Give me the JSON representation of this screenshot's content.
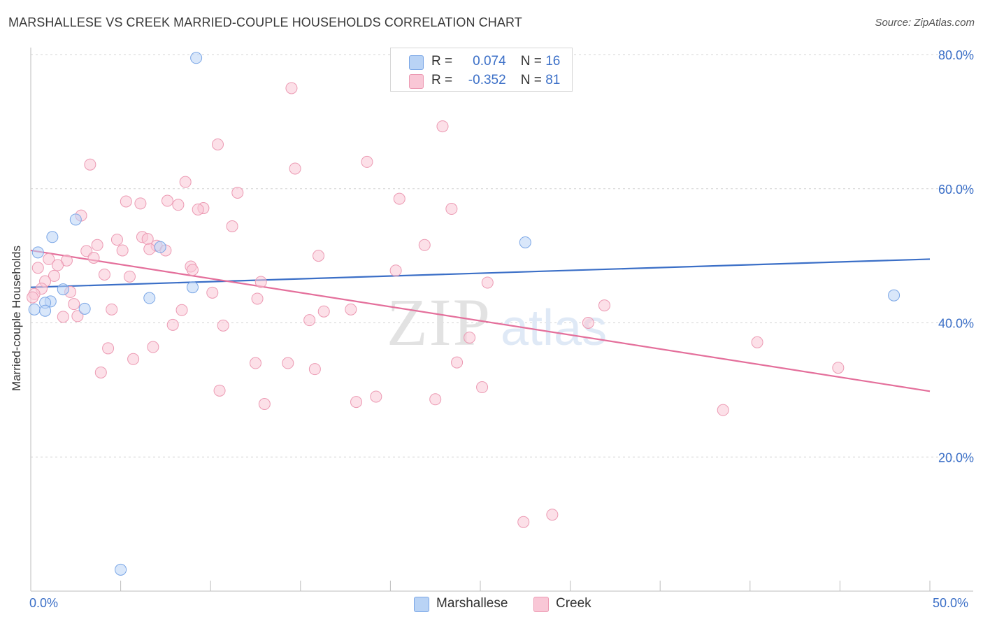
{
  "title": "MARSHALLESE VS CREEK MARRIED-COUPLE HOUSEHOLDS CORRELATION CHART",
  "source": "Source: ZipAtlas.com",
  "watermark": {
    "zip": "ZIP",
    "atlas": "atlas"
  },
  "stats": [
    {
      "r_label": "R =",
      "r_value": "0.074",
      "n_label": "N =",
      "n_value": "16",
      "fill": "#b9d3f5",
      "stroke": "#7aa6e6"
    },
    {
      "r_label": "R =",
      "r_value": "-0.352",
      "n_label": "N =",
      "n_value": "81",
      "fill": "#f9c7d6",
      "stroke": "#ec9ab3"
    }
  ],
  "legend": [
    {
      "label": "Marshallese",
      "fill": "#b9d3f5",
      "stroke": "#7aa6e6"
    },
    {
      "label": "Creek",
      "fill": "#f9c7d6",
      "stroke": "#ec9ab3"
    }
  ],
  "x_axis": {
    "min_label": "0.0%",
    "max_label": "50.0%"
  },
  "chart_data": {
    "type": "scatter",
    "title": "MARSHALLESE VS CREEK MARRIED-COUPLE HOUSEHOLDS CORRELATION CHART",
    "xlabel": "",
    "ylabel": "Married-couple Households",
    "xlim": [
      0,
      50
    ],
    "ylim": [
      0,
      80
    ],
    "yticks": [
      20,
      40,
      60,
      80
    ],
    "ytick_labels": [
      "20.0%",
      "40.0%",
      "60.0%",
      "80.0%"
    ],
    "series": [
      {
        "name": "Marshallese",
        "color": "#3b6fc7",
        "fill": "#b9d3f5",
        "stroke": "#7aa6e6",
        "trend": {
          "x": [
            0,
            50
          ],
          "y": [
            45.3,
            49.5
          ]
        },
        "points": [
          {
            "x": 9.2,
            "y": 79.5
          },
          {
            "x": 2.5,
            "y": 55.4
          },
          {
            "x": 1.2,
            "y": 52.8
          },
          {
            "x": 0.4,
            "y": 50.5
          },
          {
            "x": 7.2,
            "y": 51.3
          },
          {
            "x": 27.5,
            "y": 52.0
          },
          {
            "x": 1.8,
            "y": 45.0
          },
          {
            "x": 9.0,
            "y": 45.3
          },
          {
            "x": 1.1,
            "y": 43.2
          },
          {
            "x": 0.8,
            "y": 43.0
          },
          {
            "x": 6.6,
            "y": 43.7
          },
          {
            "x": 3.0,
            "y": 42.1
          },
          {
            "x": 0.2,
            "y": 42.0
          },
          {
            "x": 0.8,
            "y": 41.8
          },
          {
            "x": 48.0,
            "y": 44.1
          },
          {
            "x": 5.0,
            "y": 3.2
          }
        ]
      },
      {
        "name": "Creek",
        "color": "#e46f9b",
        "fill": "#f9c7d6",
        "stroke": "#ec9ab3",
        "trend": {
          "x": [
            0,
            50
          ],
          "y": [
            50.8,
            29.8
          ]
        },
        "points": [
          {
            "x": 14.5,
            "y": 75.0
          },
          {
            "x": 22.9,
            "y": 69.3
          },
          {
            "x": 10.4,
            "y": 66.6
          },
          {
            "x": 18.7,
            "y": 64.0
          },
          {
            "x": 3.3,
            "y": 63.6
          },
          {
            "x": 14.7,
            "y": 63.0
          },
          {
            "x": 8.6,
            "y": 61.0
          },
          {
            "x": 11.5,
            "y": 59.4
          },
          {
            "x": 20.5,
            "y": 58.5
          },
          {
            "x": 5.3,
            "y": 58.1
          },
          {
            "x": 6.1,
            "y": 57.8
          },
          {
            "x": 7.6,
            "y": 58.2
          },
          {
            "x": 8.2,
            "y": 57.6
          },
          {
            "x": 9.6,
            "y": 57.1
          },
          {
            "x": 9.3,
            "y": 56.9
          },
          {
            "x": 23.4,
            "y": 57.0
          },
          {
            "x": 2.8,
            "y": 56.0
          },
          {
            "x": 11.2,
            "y": 54.4
          },
          {
            "x": 6.2,
            "y": 52.8
          },
          {
            "x": 4.8,
            "y": 52.4
          },
          {
            "x": 6.5,
            "y": 52.5
          },
          {
            "x": 3.7,
            "y": 51.6
          },
          {
            "x": 21.9,
            "y": 51.6
          },
          {
            "x": 7.0,
            "y": 51.5
          },
          {
            "x": 6.6,
            "y": 51.0
          },
          {
            "x": 3.1,
            "y": 50.7
          },
          {
            "x": 5.1,
            "y": 50.8
          },
          {
            "x": 7.5,
            "y": 50.8
          },
          {
            "x": 16.0,
            "y": 50.0
          },
          {
            "x": 3.5,
            "y": 49.7
          },
          {
            "x": 1.0,
            "y": 49.5
          },
          {
            "x": 2.0,
            "y": 49.3
          },
          {
            "x": 1.5,
            "y": 48.6
          },
          {
            "x": 0.4,
            "y": 48.2
          },
          {
            "x": 8.9,
            "y": 48.4
          },
          {
            "x": 9.0,
            "y": 47.9
          },
          {
            "x": 20.3,
            "y": 47.8
          },
          {
            "x": 4.1,
            "y": 47.2
          },
          {
            "x": 1.3,
            "y": 47.0
          },
          {
            "x": 5.5,
            "y": 46.9
          },
          {
            "x": 0.8,
            "y": 46.2
          },
          {
            "x": 12.8,
            "y": 46.1
          },
          {
            "x": 25.4,
            "y": 46.0
          },
          {
            "x": 0.6,
            "y": 45.1
          },
          {
            "x": 2.2,
            "y": 44.6
          },
          {
            "x": 10.1,
            "y": 44.5
          },
          {
            "x": 0.2,
            "y": 44.3
          },
          {
            "x": 12.6,
            "y": 43.6
          },
          {
            "x": 2.4,
            "y": 42.8
          },
          {
            "x": 31.9,
            "y": 42.6
          },
          {
            "x": 4.5,
            "y": 42.0
          },
          {
            "x": 8.4,
            "y": 41.9
          },
          {
            "x": 17.8,
            "y": 42.0
          },
          {
            "x": 16.3,
            "y": 41.7
          },
          {
            "x": 1.8,
            "y": 40.9
          },
          {
            "x": 2.6,
            "y": 41.0
          },
          {
            "x": 15.5,
            "y": 40.4
          },
          {
            "x": 31.0,
            "y": 40.0
          },
          {
            "x": 7.9,
            "y": 39.7
          },
          {
            "x": 10.7,
            "y": 39.6
          },
          {
            "x": 24.4,
            "y": 37.8
          },
          {
            "x": 40.4,
            "y": 37.1
          },
          {
            "x": 6.8,
            "y": 36.4
          },
          {
            "x": 4.3,
            "y": 36.2
          },
          {
            "x": 5.7,
            "y": 34.6
          },
          {
            "x": 12.5,
            "y": 34.0
          },
          {
            "x": 14.3,
            "y": 34.0
          },
          {
            "x": 23.7,
            "y": 34.1
          },
          {
            "x": 15.8,
            "y": 33.1
          },
          {
            "x": 44.9,
            "y": 33.3
          },
          {
            "x": 3.9,
            "y": 32.6
          },
          {
            "x": 25.1,
            "y": 30.4
          },
          {
            "x": 10.5,
            "y": 29.9
          },
          {
            "x": 19.2,
            "y": 29.0
          },
          {
            "x": 22.5,
            "y": 28.6
          },
          {
            "x": 18.1,
            "y": 28.2
          },
          {
            "x": 13.0,
            "y": 27.9
          },
          {
            "x": 38.5,
            "y": 27.0
          },
          {
            "x": 29.0,
            "y": 11.4
          },
          {
            "x": 27.4,
            "y": 10.3
          },
          {
            "x": 0.1,
            "y": 43.8
          }
        ]
      }
    ]
  }
}
